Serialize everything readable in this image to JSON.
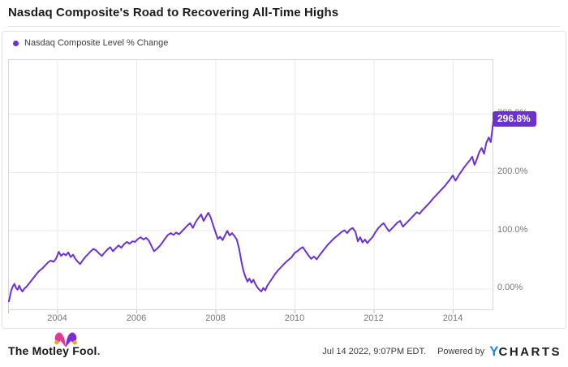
{
  "page": {
    "title": "Nasdaq Composite's Road to Recovering All-Time Highs"
  },
  "legend": {
    "series_label": "Nasdaq Composite Level % Change",
    "dot_color": "#6c31d1"
  },
  "badge": {
    "label": "296.8%",
    "value": 296.8,
    "color": "#6c31d1"
  },
  "footer": {
    "logo_text": "The Motley Fool",
    "logo_period": ".",
    "timestamp": "Jul 14 2022, 9:07PM EDT.",
    "powered_by": "Powered by",
    "ycharts_y": "Y",
    "ycharts_rest": "CHARTS"
  },
  "colors": {
    "line": "#6c31d1",
    "grid": "#e9e9e9",
    "frame": "#d6d6d6",
    "tick": "#bdbdbd"
  },
  "chart_data": {
    "type": "line",
    "title": "Nasdaq Composite's Road to Recovering All-Time Highs",
    "xlabel": "",
    "ylabel": "Nasdaq Composite Level % Change",
    "grid": true,
    "legend_position": "top-left",
    "xlim": [
      2002.759,
      2015.026
    ],
    "ylim": [
      -37,
      393
    ],
    "x_ticks": [
      {
        "year": 2004,
        "label": "2004"
      },
      {
        "year": 2006,
        "label": "2006"
      },
      {
        "year": 2008,
        "label": "2008"
      },
      {
        "year": 2010,
        "label": "2010"
      },
      {
        "year": 2012,
        "label": "2012"
      },
      {
        "year": 2014,
        "label": "2014"
      }
    ],
    "y_ticks": [
      {
        "value": 300,
        "label": "300.0%"
      },
      {
        "value": 200,
        "label": "200.0%"
      },
      {
        "value": 100,
        "label": "100.0%"
      },
      {
        "value": 0,
        "label": "0.00%"
      }
    ],
    "series": [
      {
        "name": "Nasdaq Composite Level % Change",
        "color": "#6c31d1",
        "end_label": "296.8%",
        "points": [
          [
            2002.78,
            -22
          ],
          [
            2002.81,
            -12
          ],
          [
            2002.84,
            -3
          ],
          [
            2002.88,
            4
          ],
          [
            2002.92,
            8
          ],
          [
            2002.96,
            1
          ],
          [
            2003.0,
            -2
          ],
          [
            2003.04,
            5
          ],
          [
            2003.08,
            -1
          ],
          [
            2003.12,
            -5
          ],
          [
            2003.17,
            0
          ],
          [
            2003.22,
            3
          ],
          [
            2003.28,
            8
          ],
          [
            2003.35,
            14
          ],
          [
            2003.42,
            20
          ],
          [
            2003.49,
            26
          ],
          [
            2003.56,
            31
          ],
          [
            2003.63,
            35
          ],
          [
            2003.7,
            40
          ],
          [
            2003.77,
            45
          ],
          [
            2003.84,
            48
          ],
          [
            2003.91,
            46
          ],
          [
            2003.97,
            51
          ],
          [
            2004.04,
            63
          ],
          [
            2004.1,
            56
          ],
          [
            2004.16,
            60
          ],
          [
            2004.22,
            57
          ],
          [
            2004.28,
            62
          ],
          [
            2004.34,
            54
          ],
          [
            2004.4,
            58
          ],
          [
            2004.46,
            51
          ],
          [
            2004.52,
            46
          ],
          [
            2004.58,
            42
          ],
          [
            2004.64,
            48
          ],
          [
            2004.71,
            54
          ],
          [
            2004.78,
            59
          ],
          [
            2004.85,
            64
          ],
          [
            2004.92,
            68
          ],
          [
            2004.99,
            65
          ],
          [
            2005.06,
            60
          ],
          [
            2005.13,
            56
          ],
          [
            2005.2,
            62
          ],
          [
            2005.27,
            67
          ],
          [
            2005.34,
            71
          ],
          [
            2005.41,
            64
          ],
          [
            2005.48,
            69
          ],
          [
            2005.55,
            74
          ],
          [
            2005.62,
            70
          ],
          [
            2005.69,
            76
          ],
          [
            2005.76,
            80
          ],
          [
            2005.83,
            77
          ],
          [
            2005.9,
            81
          ],
          [
            2005.97,
            80
          ],
          [
            2006.04,
            85
          ],
          [
            2006.11,
            88
          ],
          [
            2006.18,
            84
          ],
          [
            2006.25,
            87
          ],
          [
            2006.32,
            82
          ],
          [
            2006.39,
            72
          ],
          [
            2006.45,
            64
          ],
          [
            2006.52,
            68
          ],
          [
            2006.59,
            73
          ],
          [
            2006.66,
            79
          ],
          [
            2006.73,
            86
          ],
          [
            2006.8,
            92
          ],
          [
            2006.87,
            95
          ],
          [
            2006.94,
            92
          ],
          [
            2007.01,
            96
          ],
          [
            2007.08,
            93
          ],
          [
            2007.15,
            98
          ],
          [
            2007.22,
            103
          ],
          [
            2007.29,
            108
          ],
          [
            2007.36,
            112
          ],
          [
            2007.43,
            104
          ],
          [
            2007.5,
            114
          ],
          [
            2007.57,
            121
          ],
          [
            2007.64,
            127
          ],
          [
            2007.7,
            116
          ],
          [
            2007.76,
            123
          ],
          [
            2007.82,
            130
          ],
          [
            2007.88,
            122
          ],
          [
            2007.94,
            109
          ],
          [
            2008.0,
            97
          ],
          [
            2008.06,
            85
          ],
          [
            2008.12,
            89
          ],
          [
            2008.18,
            83
          ],
          [
            2008.24,
            91
          ],
          [
            2008.3,
            99
          ],
          [
            2008.36,
            91
          ],
          [
            2008.42,
            95
          ],
          [
            2008.48,
            90
          ],
          [
            2008.54,
            84
          ],
          [
            2008.6,
            68
          ],
          [
            2008.66,
            45
          ],
          [
            2008.71,
            30
          ],
          [
            2008.76,
            20
          ],
          [
            2008.81,
            12
          ],
          [
            2008.86,
            17
          ],
          [
            2008.91,
            10
          ],
          [
            2008.96,
            15
          ],
          [
            2009.01,
            8
          ],
          [
            2009.06,
            2
          ],
          [
            2009.11,
            -2
          ],
          [
            2009.16,
            -5
          ],
          [
            2009.21,
            1
          ],
          [
            2009.26,
            -3
          ],
          [
            2009.31,
            5
          ],
          [
            2009.37,
            11
          ],
          [
            2009.44,
            18
          ],
          [
            2009.51,
            25
          ],
          [
            2009.58,
            31
          ],
          [
            2009.65,
            36
          ],
          [
            2009.72,
            41
          ],
          [
            2009.79,
            46
          ],
          [
            2009.86,
            50
          ],
          [
            2009.93,
            54
          ],
          [
            2010.0,
            61
          ],
          [
            2010.07,
            64
          ],
          [
            2010.14,
            68
          ],
          [
            2010.21,
            71
          ],
          [
            2010.28,
            64
          ],
          [
            2010.35,
            57
          ],
          [
            2010.42,
            51
          ],
          [
            2010.49,
            55
          ],
          [
            2010.56,
            50
          ],
          [
            2010.63,
            57
          ],
          [
            2010.7,
            63
          ],
          [
            2010.77,
            69
          ],
          [
            2010.84,
            75
          ],
          [
            2010.91,
            80
          ],
          [
            2010.98,
            85
          ],
          [
            2011.05,
            89
          ],
          [
            2011.12,
            93
          ],
          [
            2011.19,
            97
          ],
          [
            2011.26,
            100
          ],
          [
            2011.33,
            95
          ],
          [
            2011.4,
            101
          ],
          [
            2011.47,
            104
          ],
          [
            2011.54,
            97
          ],
          [
            2011.6,
            81
          ],
          [
            2011.66,
            88
          ],
          [
            2011.72,
            79
          ],
          [
            2011.78,
            84
          ],
          [
            2011.84,
            78
          ],
          [
            2011.9,
            83
          ],
          [
            2011.97,
            88
          ],
          [
            2012.04,
            96
          ],
          [
            2012.11,
            103
          ],
          [
            2012.18,
            108
          ],
          [
            2012.25,
            112
          ],
          [
            2012.32,
            105
          ],
          [
            2012.39,
            98
          ],
          [
            2012.46,
            103
          ],
          [
            2012.53,
            108
          ],
          [
            2012.6,
            113
          ],
          [
            2012.67,
            116
          ],
          [
            2012.74,
            106
          ],
          [
            2012.81,
            111
          ],
          [
            2012.88,
            116
          ],
          [
            2012.95,
            121
          ],
          [
            2013.02,
            126
          ],
          [
            2013.09,
            131
          ],
          [
            2013.16,
            128
          ],
          [
            2013.23,
            134
          ],
          [
            2013.3,
            139
          ],
          [
            2013.37,
            144
          ],
          [
            2013.44,
            149
          ],
          [
            2013.51,
            155
          ],
          [
            2013.58,
            160
          ],
          [
            2013.65,
            165
          ],
          [
            2013.72,
            170
          ],
          [
            2013.79,
            175
          ],
          [
            2013.86,
            181
          ],
          [
            2013.93,
            187
          ],
          [
            2014.0,
            194
          ],
          [
            2014.07,
            185
          ],
          [
            2014.14,
            193
          ],
          [
            2014.21,
            200
          ],
          [
            2014.28,
            207
          ],
          [
            2014.35,
            213
          ],
          [
            2014.42,
            219
          ],
          [
            2014.49,
            226
          ],
          [
            2014.55,
            212
          ],
          [
            2014.61,
            222
          ],
          [
            2014.67,
            234
          ],
          [
            2014.73,
            241
          ],
          [
            2014.79,
            231
          ],
          [
            2014.85,
            250
          ],
          [
            2014.91,
            259
          ],
          [
            2014.96,
            251
          ],
          [
            2015.0,
            272
          ],
          [
            2015.02,
            284
          ],
          [
            2015.03,
            291
          ]
        ]
      }
    ]
  }
}
